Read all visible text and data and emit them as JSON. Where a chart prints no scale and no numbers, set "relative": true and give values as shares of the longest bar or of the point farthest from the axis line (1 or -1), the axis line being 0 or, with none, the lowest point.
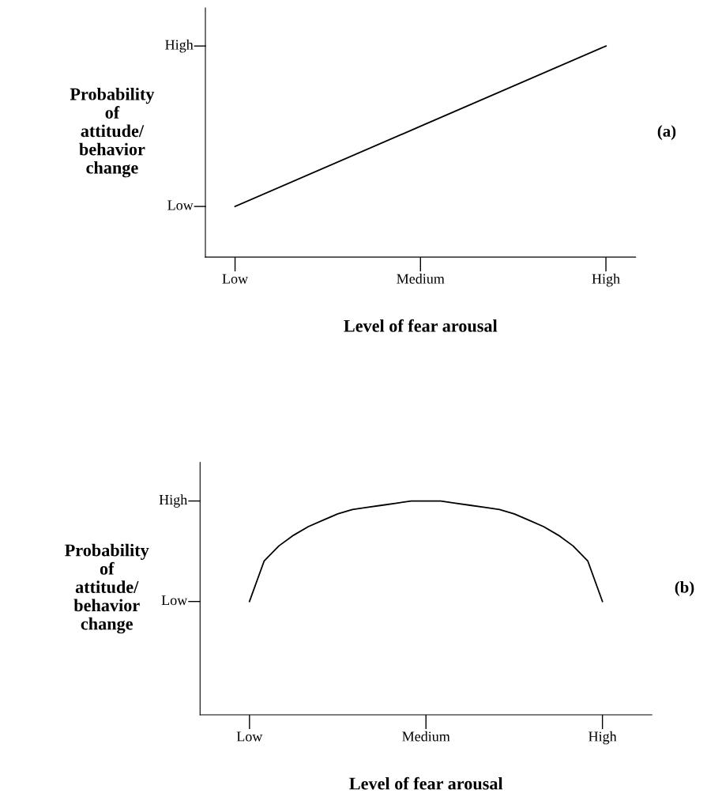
{
  "chart_data": [
    {
      "type": "line",
      "relative": true,
      "xlabel": "Level of fear arousal",
      "ylabel": "Probability\nof\nattitude/\nbehavior\nchange",
      "annotations": [
        "(a)",
        "Low",
        "High"
      ],
      "categories": [
        "Low",
        "Medium",
        "High"
      ],
      "series": [
        {
          "color": "#000000",
          "values": [
            0.24,
            0.62,
            1
          ]
        }
      ]
    },
    {
      "type": "line",
      "relative": true,
      "xlabel": "Level of fear arousal",
      "ylabel": "Probability\nof\nattitude/\nbehavior\nchange",
      "annotations": [
        "(b)",
        "Low",
        "High"
      ],
      "categories": [
        "Low",
        null,
        null,
        null,
        null,
        null,
        null,
        null,
        null,
        null,
        null,
        null,
        "Medium",
        null,
        null,
        null,
        null,
        null,
        null,
        null,
        null,
        null,
        null,
        null,
        "High"
      ],
      "series": [
        {
          "color": "#000000",
          "values": [
            0.53,
            0.72,
            0.79,
            0.84,
            0.88,
            0.91,
            0.94,
            0.96,
            0.97,
            0.98,
            0.99,
            1.0,
            1.0,
            1.0,
            0.99,
            0.98,
            0.97,
            0.96,
            0.94,
            0.91,
            0.88,
            0.84,
            0.79,
            0.72,
            0.53
          ]
        }
      ]
    }
  ]
}
